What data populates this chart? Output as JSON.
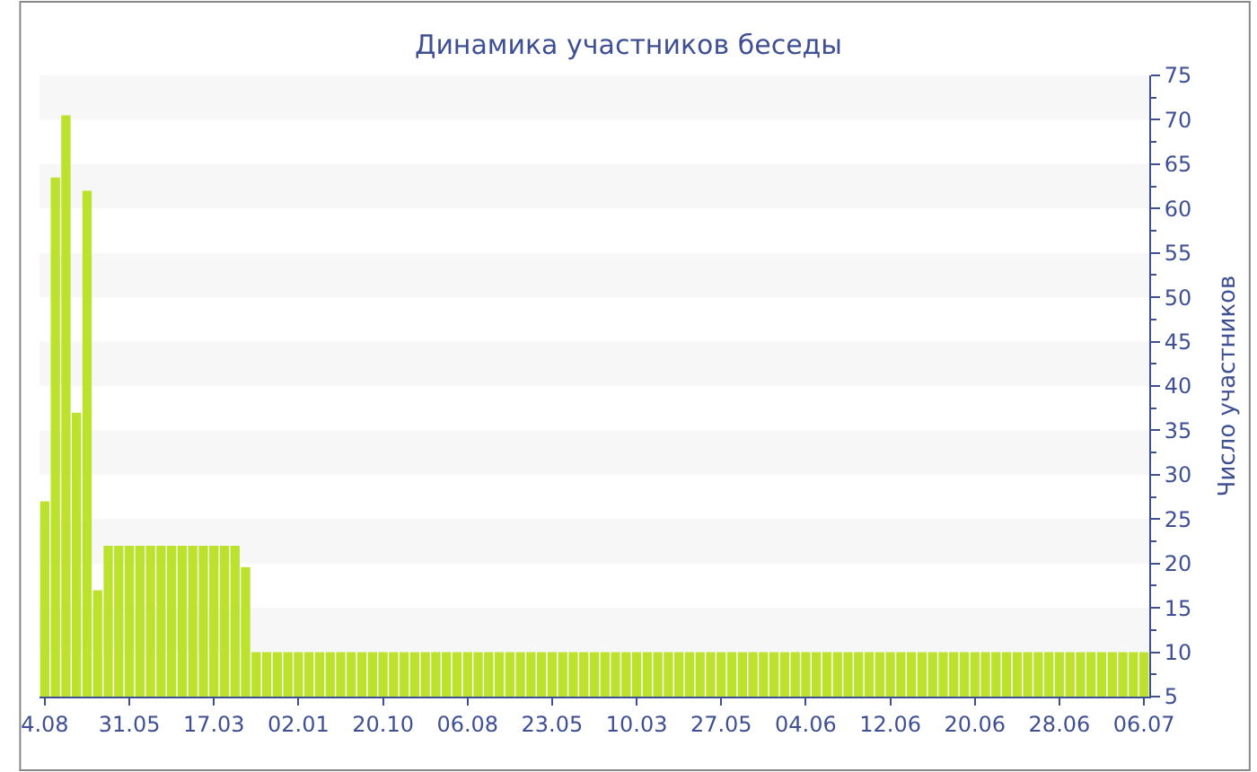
{
  "chart_data": {
    "type": "bar",
    "title": "Динамика участников беседы",
    "ylabel": "Число участников",
    "categories": [
      "4.08",
      null,
      null,
      null,
      null,
      null,
      null,
      null,
      "31.05",
      null,
      null,
      null,
      null,
      null,
      null,
      null,
      "17.03",
      null,
      null,
      null,
      null,
      null,
      null,
      null,
      "02.01",
      null,
      null,
      null,
      null,
      null,
      null,
      null,
      "20.10",
      null,
      null,
      null,
      null,
      null,
      null,
      null,
      "06.08",
      null,
      null,
      null,
      null,
      null,
      null,
      null,
      "23.05",
      null,
      null,
      null,
      null,
      null,
      null,
      null,
      "10.03",
      null,
      null,
      null,
      null,
      null,
      null,
      null,
      "27.05",
      null,
      null,
      null,
      null,
      null,
      null,
      null,
      "04.06",
      null,
      null,
      null,
      null,
      null,
      null,
      null,
      "12.06",
      null,
      null,
      null,
      null,
      null,
      null,
      null,
      "20.06",
      null,
      null,
      null,
      null,
      null,
      null,
      null,
      "28.06",
      null,
      null,
      null,
      null,
      null,
      null,
      null,
      "06.07"
    ],
    "values": [
      27,
      63.5,
      70.5,
      37,
      62,
      17,
      22,
      22,
      22,
      22,
      22,
      22,
      22,
      22,
      22,
      22,
      22,
      22,
      22,
      19.6,
      10,
      10,
      10,
      10,
      10,
      10,
      10,
      10,
      10,
      10,
      10,
      10,
      10,
      10,
      10,
      10,
      10,
      10,
      10,
      10,
      10,
      10,
      10,
      10,
      10,
      10,
      10,
      10,
      10,
      10,
      10,
      10,
      10,
      10,
      10,
      10,
      10,
      10,
      10,
      10,
      10,
      10,
      10,
      10,
      10,
      10,
      10,
      10,
      10,
      10,
      10,
      10,
      10,
      10,
      10,
      10,
      10,
      10,
      10,
      10,
      10,
      10,
      10,
      10,
      10,
      10,
      10,
      10,
      10,
      10,
      10,
      10,
      10,
      10,
      10,
      10,
      10,
      10,
      10,
      10,
      10,
      10,
      10,
      10,
      10
    ],
    "color": "#bde22d",
    "ylim": [
      5,
      75
    ],
    "yticks": [
      5,
      10,
      15,
      20,
      25,
      30,
      35,
      40,
      45,
      50,
      55,
      60,
      65,
      70,
      75
    ],
    "bands": [
      {
        "axis": "y",
        "from": 10,
        "to": 15,
        "color": "#f7f7f7"
      },
      {
        "axis": "y",
        "from": 20,
        "to": 25,
        "color": "#f7f7f7"
      },
      {
        "axis": "y",
        "from": 30,
        "to": 35,
        "color": "#f7f7f7"
      },
      {
        "axis": "y",
        "from": 40,
        "to": 45,
        "color": "#f7f7f7"
      },
      {
        "axis": "y",
        "from": 50,
        "to": 55,
        "color": "#f7f7f7"
      },
      {
        "axis": "y",
        "from": 60,
        "to": 65,
        "color": "#f7f7f7"
      },
      {
        "axis": "y",
        "from": 70,
        "to": 75,
        "color": "#f7f7f7"
      }
    ],
    "grid": false
  }
}
